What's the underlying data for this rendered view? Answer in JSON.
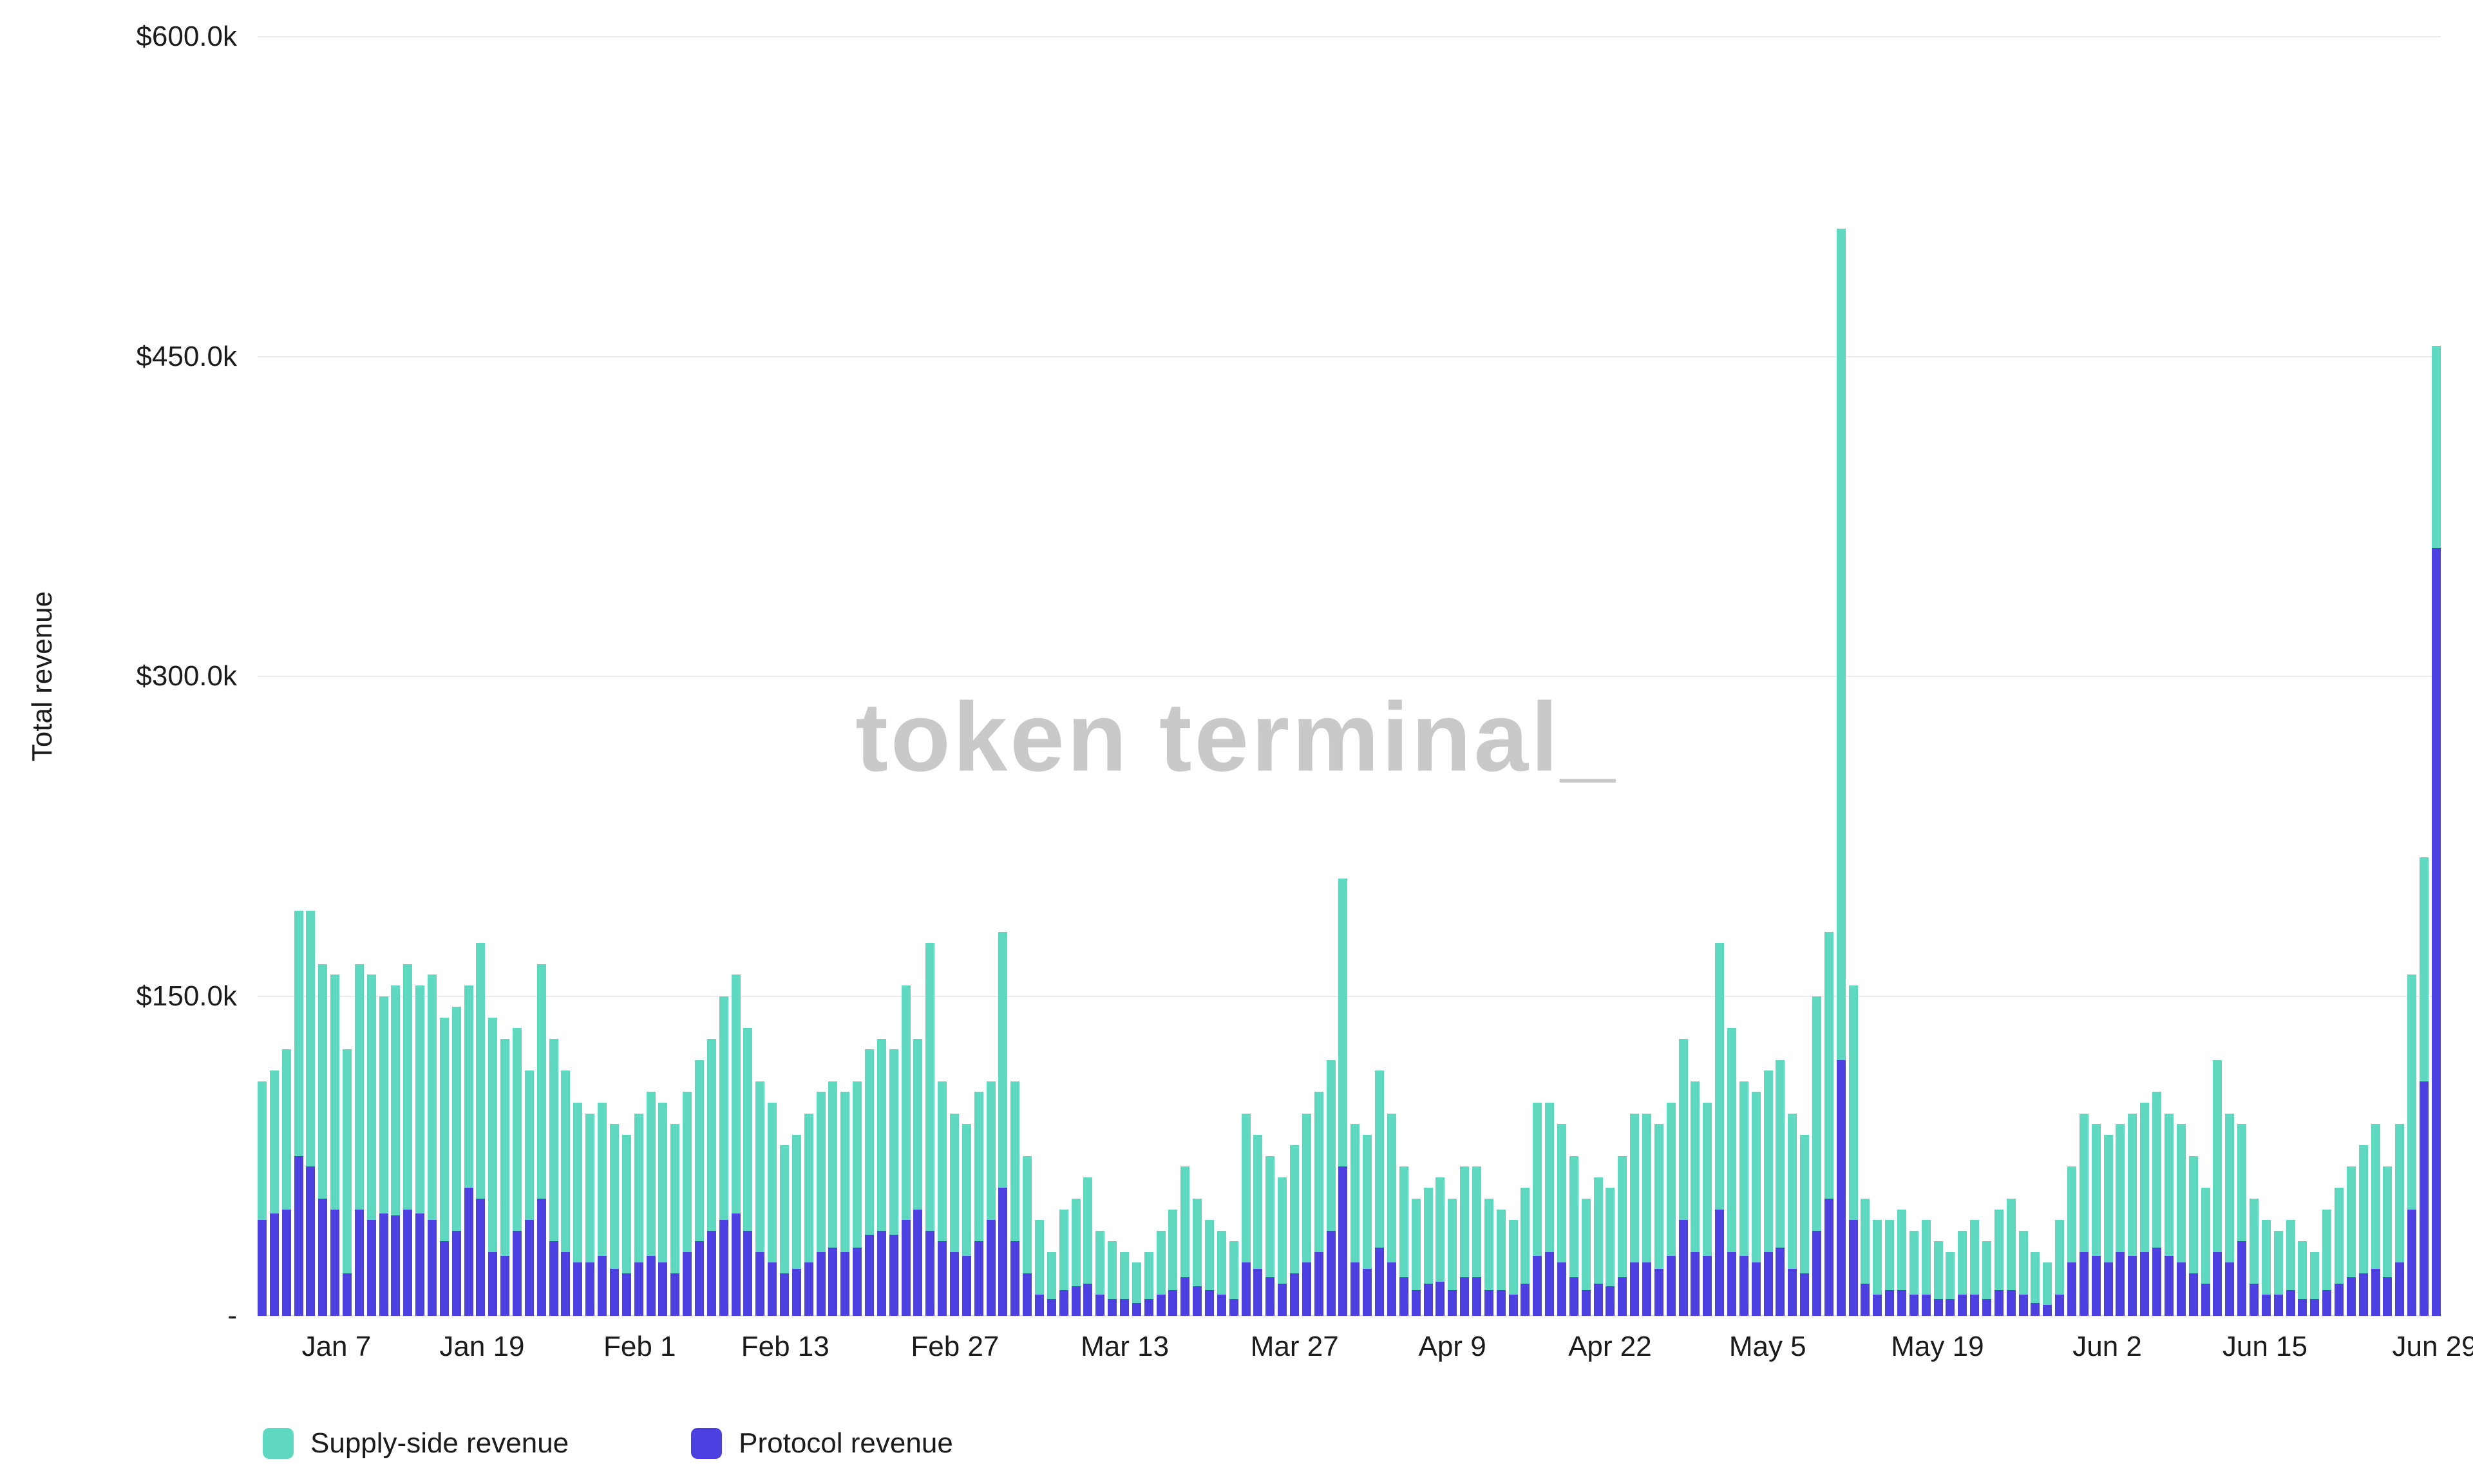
{
  "y_axis": {
    "title": "Total revenue"
  },
  "watermark": "token terminal_",
  "legend": [
    {
      "label": "Supply-side revenue",
      "color": "#5ed9c0"
    },
    {
      "label": "Protocol revenue",
      "color": "#4c40e1"
    }
  ],
  "chart_data": {
    "type": "bar",
    "stacked": true,
    "title": "",
    "ylabel": "Total revenue",
    "unit": "USD thousands per day",
    "ylim": [
      0,
      600
    ],
    "grid": "horizontal",
    "legend_position": "bottom-left",
    "n_bars": 180,
    "x_start": "Jan 1",
    "x_end": "Jun 29",
    "y_ticks": [
      {
        "label": "$600.0k",
        "value": 600
      },
      {
        "label": "$450.0k",
        "value": 450
      },
      {
        "label": "$300.0k",
        "value": 300
      },
      {
        "label": "$150.0k",
        "value": 150
      },
      {
        "label": "-",
        "value": 0
      }
    ],
    "x_ticks": [
      {
        "label": "Jan 7",
        "index": 6
      },
      {
        "label": "Jan 19",
        "index": 18
      },
      {
        "label": "Feb 1",
        "index": 31
      },
      {
        "label": "Feb 13",
        "index": 43
      },
      {
        "label": "Feb 27",
        "index": 57
      },
      {
        "label": "Mar 13",
        "index": 71
      },
      {
        "label": "Mar 27",
        "index": 85
      },
      {
        "label": "Apr 9",
        "index": 98
      },
      {
        "label": "Apr 22",
        "index": 111
      },
      {
        "label": "May 5",
        "index": 124
      },
      {
        "label": "May 19",
        "index": 138
      },
      {
        "label": "Jun 2",
        "index": 152
      },
      {
        "label": "Jun 15",
        "index": 165
      },
      {
        "label": "Jun 29",
        "index": 179
      }
    ],
    "series": [
      {
        "name": "Protocol revenue",
        "color": "#4c40e1",
        "stack_order": "bottom",
        "values": [
          45,
          48,
          50,
          75,
          70,
          55,
          50,
          20,
          50,
          45,
          48,
          47,
          50,
          48,
          45,
          35,
          40,
          60,
          55,
          30,
          28,
          40,
          45,
          55,
          35,
          30,
          25,
          25,
          28,
          22,
          20,
          25,
          28,
          25,
          20,
          30,
          35,
          40,
          45,
          48,
          40,
          30,
          25,
          20,
          22,
          25,
          30,
          32,
          30,
          32,
          38,
          40,
          38,
          45,
          50,
          40,
          35,
          30,
          28,
          35,
          45,
          60,
          35,
          20,
          10,
          8,
          12,
          14,
          15,
          10,
          8,
          8,
          6,
          8,
          10,
          12,
          18,
          14,
          12,
          10,
          8,
          25,
          22,
          18,
          15,
          20,
          25,
          30,
          40,
          70,
          25,
          22,
          32,
          25,
          18,
          12,
          15,
          16,
          12,
          18,
          18,
          12,
          12,
          10,
          15,
          28,
          30,
          25,
          18,
          12,
          15,
          14,
          18,
          25,
          25,
          22,
          28,
          45,
          30,
          28,
          50,
          30,
          28,
          25,
          30,
          32,
          22,
          20,
          40,
          55,
          120,
          45,
          15,
          10,
          12,
          12,
          10,
          10,
          8,
          8,
          10,
          10,
          8,
          12,
          12,
          10,
          6,
          5,
          10,
          25,
          30,
          28,
          25,
          30,
          28,
          30,
          32,
          28,
          25,
          20,
          15,
          30,
          25,
          35,
          15,
          10,
          10,
          12,
          8,
          8,
          12,
          15,
          18,
          20,
          22,
          18,
          25,
          50,
          110,
          360
        ]
      },
      {
        "name": "Supply-side revenue",
        "color": "#5ed9c0",
        "stack_order": "top",
        "values": [
          65,
          67,
          75,
          115,
          120,
          110,
          110,
          105,
          115,
          115,
          102,
          108,
          115,
          107,
          115,
          105,
          105,
          95,
          120,
          110,
          102,
          95,
          70,
          110,
          95,
          85,
          75,
          70,
          72,
          68,
          65,
          70,
          77,
          75,
          70,
          75,
          85,
          90,
          105,
          112,
          95,
          80,
          75,
          60,
          63,
          70,
          75,
          78,
          75,
          78,
          87,
          90,
          87,
          110,
          80,
          135,
          75,
          65,
          62,
          70,
          65,
          120,
          75,
          55,
          35,
          22,
          38,
          41,
          50,
          30,
          27,
          22,
          19,
          22,
          30,
          38,
          52,
          41,
          33,
          30,
          27,
          70,
          63,
          57,
          50,
          60,
          70,
          75,
          80,
          135,
          65,
          63,
          83,
          70,
          52,
          43,
          45,
          49,
          43,
          52,
          52,
          43,
          38,
          35,
          45,
          72,
          70,
          65,
          57,
          43,
          50,
          46,
          57,
          70,
          70,
          68,
          72,
          85,
          80,
          72,
          125,
          105,
          82,
          80,
          85,
          88,
          73,
          65,
          110,
          125,
          390,
          110,
          40,
          35,
          33,
          38,
          30,
          35,
          27,
          22,
          30,
          35,
          27,
          38,
          43,
          30,
          24,
          20,
          35,
          45,
          65,
          62,
          60,
          60,
          67,
          70,
          73,
          67,
          65,
          55,
          45,
          90,
          70,
          55,
          40,
          35,
          30,
          33,
          27,
          22,
          38,
          45,
          52,
          60,
          68,
          52,
          65,
          110,
          105,
          95
        ]
      }
    ]
  }
}
